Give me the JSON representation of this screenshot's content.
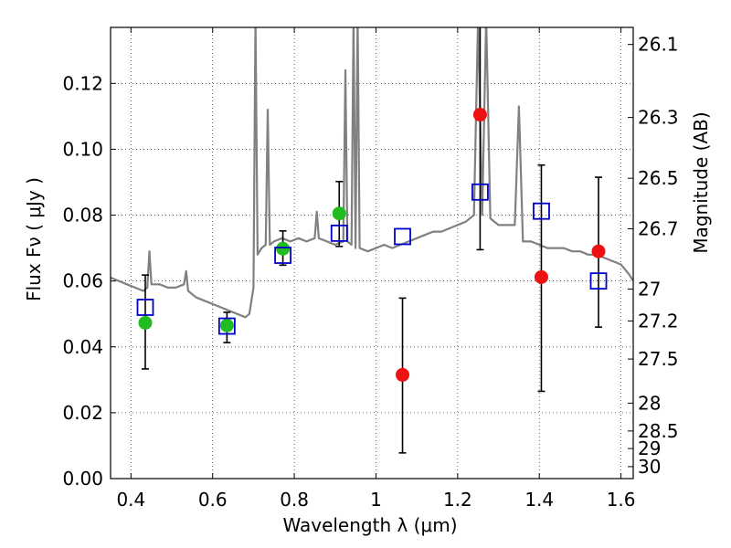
{
  "chart_data": {
    "type": "scatter",
    "xlabel": "Wavelength  λ (μm)",
    "ylabel": "Flux  Fν  ( μJy )",
    "y2label": "Magnitude (AB)",
    "xlim": [
      0.35,
      1.63
    ],
    "ylim": [
      0.0,
      0.137
    ],
    "grid": true,
    "legend": "none",
    "x_ticks": [
      0.4,
      0.6,
      0.8,
      1.0,
      1.2,
      1.4,
      1.6
    ],
    "x_tick_labels": [
      "0.4",
      "0.6",
      "0.8",
      "1",
      "1.2",
      "1.4",
      "1.6"
    ],
    "y_ticks": [
      0.0,
      0.02,
      0.04,
      0.06,
      0.08,
      0.1,
      0.12
    ],
    "y_tick_labels": [
      "0.00",
      "0.02",
      "0.04",
      "0.06",
      "0.08",
      "0.10",
      "0.12"
    ],
    "mag_ticks": [
      "26.1",
      "26.3",
      "26.5",
      "26.7",
      "27",
      "27.2",
      "27.5",
      "28",
      "28.5",
      "29",
      "30"
    ],
    "colors": {
      "spectrum": "#808080",
      "detection": "#22bb22",
      "nondetection": "#ee1111",
      "model": "#0000cc",
      "errorbar": "#000000"
    },
    "series": [
      {
        "kind": "spectrum",
        "x": [
          0.35,
          0.37,
          0.39,
          0.41,
          0.43,
          0.44,
          0.445,
          0.45,
          0.47,
          0.49,
          0.51,
          0.53,
          0.535,
          0.54,
          0.56,
          0.58,
          0.6,
          0.62,
          0.64,
          0.66,
          0.68,
          0.69,
          0.7,
          0.705,
          0.71,
          0.72,
          0.73,
          0.735,
          0.74,
          0.75,
          0.77,
          0.79,
          0.81,
          0.83,
          0.85,
          0.855,
          0.86,
          0.88,
          0.9,
          0.92,
          0.925,
          0.93,
          0.94,
          0.945,
          0.95,
          0.955,
          0.96,
          0.98,
          1.0,
          1.02,
          1.04,
          1.06,
          1.08,
          1.1,
          1.12,
          1.14,
          1.16,
          1.18,
          1.2,
          1.22,
          1.24,
          1.25,
          1.26,
          1.27,
          1.28,
          1.3,
          1.32,
          1.34,
          1.35,
          1.36,
          1.38,
          1.4,
          1.42,
          1.44,
          1.46,
          1.48,
          1.5,
          1.52,
          1.54,
          1.56,
          1.58,
          1.6,
          1.62,
          1.63
        ],
        "y": [
          0.061,
          0.06,
          0.059,
          0.058,
          0.057,
          0.058,
          0.069,
          0.059,
          0.059,
          0.058,
          0.058,
          0.059,
          0.063,
          0.057,
          0.055,
          0.054,
          0.053,
          0.052,
          0.051,
          0.05,
          0.049,
          0.05,
          0.058,
          0.14,
          0.068,
          0.07,
          0.071,
          0.112,
          0.071,
          0.072,
          0.073,
          0.072,
          0.073,
          0.072,
          0.073,
          0.081,
          0.073,
          0.072,
          0.071,
          0.072,
          0.124,
          0.072,
          0.071,
          0.14,
          0.07,
          0.14,
          0.07,
          0.069,
          0.07,
          0.071,
          0.07,
          0.071,
          0.072,
          0.073,
          0.074,
          0.075,
          0.075,
          0.076,
          0.077,
          0.078,
          0.08,
          0.14,
          0.08,
          0.14,
          0.079,
          0.077,
          0.077,
          0.077,
          0.113,
          0.072,
          0.072,
          0.071,
          0.07,
          0.07,
          0.07,
          0.069,
          0.069,
          0.068,
          0.068,
          0.067,
          0.066,
          0.065,
          0.062,
          0.06
        ]
      },
      {
        "kind": "detection",
        "x": [
          0.435,
          0.635,
          0.772,
          0.91
        ],
        "y": [
          0.0473,
          0.0465,
          0.0698,
          0.0805
        ],
        "yerr_low": [
          0.0333,
          0.0413,
          0.0648,
          0.0705
        ],
        "yerr_high": [
          0.0618,
          0.0505,
          0.0752,
          0.0902
        ]
      },
      {
        "kind": "nondetection",
        "x": [
          1.065,
          1.255,
          1.405,
          1.545
        ],
        "y": [
          0.0315,
          0.1105,
          0.0612,
          0.069
        ],
        "yerr_low": [
          0.0078,
          0.0695,
          0.0265,
          0.046
        ],
        "yerr_high": [
          0.0548,
          0.14,
          0.0952,
          0.0915
        ]
      },
      {
        "kind": "model",
        "x": [
          0.435,
          0.635,
          0.772,
          0.91,
          1.065,
          1.255,
          1.405,
          1.545
        ],
        "y": [
          0.052,
          0.0463,
          0.0678,
          0.0745,
          0.0735,
          0.087,
          0.0812,
          0.06
        ]
      }
    ]
  }
}
